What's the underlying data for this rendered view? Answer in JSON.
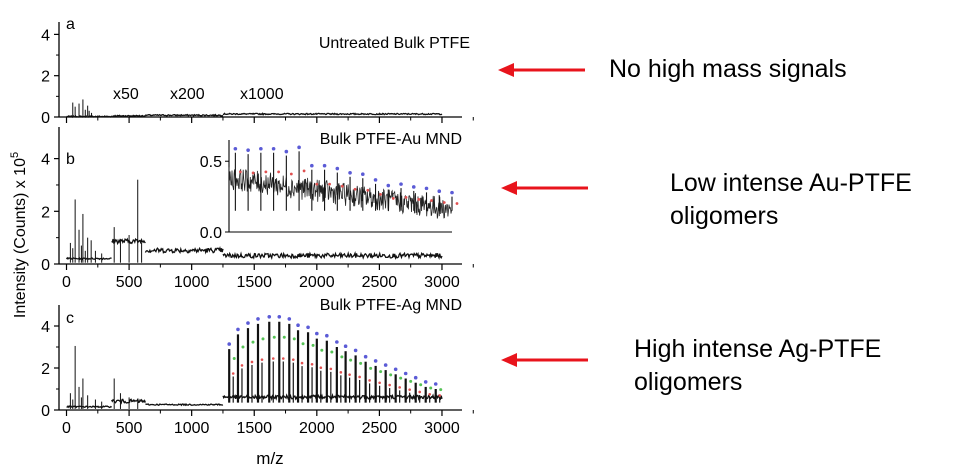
{
  "chart_data": [
    {
      "type": "line",
      "panel_letter": "a",
      "title": "Untreated Bulk PTFE",
      "segment_labels": [
        "x50",
        "x200",
        "x1000"
      ],
      "ylim": [
        0,
        4.6
      ],
      "yticks": [
        0,
        2,
        4
      ],
      "xlim": [
        -60,
        3160
      ],
      "spikes": [
        {
          "x": 50,
          "y": 0.7
        },
        {
          "x": 69,
          "y": 0.5
        },
        {
          "x": 100,
          "y": 0.65
        },
        {
          "x": 131,
          "y": 0.85
        },
        {
          "x": 150,
          "y": 0.35
        },
        {
          "x": 169,
          "y": 0.55
        },
        {
          "x": 181,
          "y": 0.3
        },
        {
          "x": 200,
          "y": 0.2
        }
      ],
      "segments": [
        {
          "x_start": 0,
          "x_end": 370,
          "baseline": 0.02
        },
        {
          "x_start": 370,
          "x_end": 630,
          "baseline": 0.05
        },
        {
          "x_start": 630,
          "x_end": 1250,
          "baseline": 0.08
        },
        {
          "x_start": 1250,
          "x_end": 3000,
          "baseline": 0.14
        }
      ]
    },
    {
      "type": "line",
      "panel_letter": "b",
      "title": "Bulk PTFE-Au MND",
      "ylim": [
        0,
        5.2
      ],
      "yticks": [
        0,
        2,
        4
      ],
      "xlim": [
        -60,
        3160
      ],
      "xticks": [
        0,
        500,
        1000,
        1500,
        2000,
        2500,
        3000
      ],
      "spikes": [
        {
          "x": 31,
          "y": 0.8
        },
        {
          "x": 50,
          "y": 0.6
        },
        {
          "x": 69,
          "y": 2.45
        },
        {
          "x": 100,
          "y": 1.3
        },
        {
          "x": 119,
          "y": 0.7
        },
        {
          "x": 131,
          "y": 1.9
        },
        {
          "x": 150,
          "y": 0.5
        },
        {
          "x": 169,
          "y": 1.0
        },
        {
          "x": 197,
          "y": 0.9
        },
        {
          "x": 231,
          "y": 0.5
        },
        {
          "x": 281,
          "y": 0.4
        },
        {
          "x": 381,
          "y": 1.4
        },
        {
          "x": 431,
          "y": 0.9
        },
        {
          "x": 500,
          "y": 1.1
        },
        {
          "x": 569,
          "y": 3.2
        },
        {
          "x": 600,
          "y": 0.8
        }
      ],
      "segments": [
        {
          "x_start": 0,
          "x_end": 360,
          "baseline": 0.2
        },
        {
          "x_start": 360,
          "x_end": 630,
          "baseline": 0.85
        },
        {
          "x_start": 630,
          "x_end": 1250,
          "baseline": 0.5
        },
        {
          "x_start": 1250,
          "x_end": 3000,
          "baseline": 0.3
        }
      ],
      "inset": {
        "ylim": [
          0,
          0.65
        ],
        "yticks": [
          0.0,
          0.5
        ],
        "xlim": [
          1250,
          3000
        ],
        "envelope_start": 0.38,
        "envelope_end": 0.16,
        "oligomer_peaks": [
          {
            "x": 1300,
            "y": 0.56
          },
          {
            "x": 1400,
            "y": 0.55
          },
          {
            "x": 1500,
            "y": 0.56
          },
          {
            "x": 1600,
            "y": 0.56
          },
          {
            "x": 1700,
            "y": 0.54
          },
          {
            "x": 1800,
            "y": 0.57
          },
          {
            "x": 1900,
            "y": 0.44
          },
          {
            "x": 2000,
            "y": 0.44
          },
          {
            "x": 2100,
            "y": 0.42
          },
          {
            "x": 2200,
            "y": 0.39
          },
          {
            "x": 2300,
            "y": 0.38
          },
          {
            "x": 2400,
            "y": 0.34
          },
          {
            "x": 2500,
            "y": 0.3
          },
          {
            "x": 2600,
            "y": 0.31
          },
          {
            "x": 2700,
            "y": 0.29
          },
          {
            "x": 2800,
            "y": 0.28
          },
          {
            "x": 2900,
            "y": 0.26
          },
          {
            "x": 3000,
            "y": 0.25
          }
        ],
        "peak_marker_color": "#5b5bd6",
        "satellite_marker_color": "#e05050"
      }
    },
    {
      "type": "line",
      "panel_letter": "c",
      "title": "Bulk PTFE-Ag MND",
      "ylim": [
        0,
        5.0
      ],
      "yticks": [
        0,
        2,
        4
      ],
      "xlim": [
        -60,
        3160
      ],
      "xticks": [
        0,
        500,
        1000,
        1500,
        2000,
        2500,
        3000
      ],
      "xlabel": "m/z",
      "spikes": [
        {
          "x": 31,
          "y": 0.8
        },
        {
          "x": 50,
          "y": 0.5
        },
        {
          "x": 69,
          "y": 3.05
        },
        {
          "x": 100,
          "y": 1.1
        },
        {
          "x": 119,
          "y": 0.6
        },
        {
          "x": 131,
          "y": 1.5
        },
        {
          "x": 169,
          "y": 0.7
        },
        {
          "x": 231,
          "y": 0.5
        },
        {
          "x": 281,
          "y": 0.4
        },
        {
          "x": 381,
          "y": 1.5
        },
        {
          "x": 431,
          "y": 0.8
        },
        {
          "x": 500,
          "y": 0.6
        },
        {
          "x": 569,
          "y": 0.5
        }
      ],
      "segments": [
        {
          "x_start": 0,
          "x_end": 360,
          "baseline": 0.15
        },
        {
          "x_start": 360,
          "x_end": 630,
          "baseline": 0.4
        },
        {
          "x_start": 630,
          "x_end": 1250,
          "baseline": 0.25
        },
        {
          "x_start": 1250,
          "x_end": 3000,
          "baseline": 0.6
        }
      ],
      "oligomer_peaks": [
        {
          "x": 1300,
          "y": 2.9
        },
        {
          "x": 1370,
          "y": 3.6
        },
        {
          "x": 1450,
          "y": 3.9
        },
        {
          "x": 1530,
          "y": 4.1
        },
        {
          "x": 1620,
          "y": 4.2
        },
        {
          "x": 1700,
          "y": 4.2
        },
        {
          "x": 1780,
          "y": 4.1
        },
        {
          "x": 1850,
          "y": 3.8
        },
        {
          "x": 1930,
          "y": 3.7
        },
        {
          "x": 2000,
          "y": 3.4
        },
        {
          "x": 2080,
          "y": 3.3
        },
        {
          "x": 2160,
          "y": 3.0
        },
        {
          "x": 2230,
          "y": 2.8
        },
        {
          "x": 2310,
          "y": 2.6
        },
        {
          "x": 2390,
          "y": 2.3
        },
        {
          "x": 2470,
          "y": 2.1
        },
        {
          "x": 2550,
          "y": 1.9
        },
        {
          "x": 2630,
          "y": 1.7
        },
        {
          "x": 2710,
          "y": 1.5
        },
        {
          "x": 2790,
          "y": 1.3
        },
        {
          "x": 2870,
          "y": 1.1
        },
        {
          "x": 2950,
          "y": 1.0
        }
      ],
      "peak_marker_color": "#5b5bd6",
      "satellite_marker_color": "#e05050",
      "secondary_marker_color": "#55c255"
    }
  ],
  "shared_ylabel": "Intensity (Counts) x 10",
  "shared_ylabel_exponent": "5",
  "annotations": [
    {
      "lines": [
        "No high mass signals"
      ]
    },
    {
      "lines": [
        "Low intense Au-PTFE",
        "oligomers"
      ]
    },
    {
      "lines": [
        "High intense Ag-PTFE",
        "oligomers"
      ]
    }
  ],
  "arrow_color": "#e8141c"
}
